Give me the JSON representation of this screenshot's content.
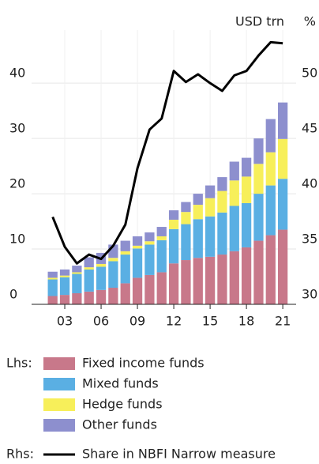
{
  "chart_data": {
    "type": "bar",
    "ylabel": "USD trn",
    "y2label": "%",
    "x": [
      2002,
      2003,
      2004,
      2005,
      2006,
      2007,
      2008,
      2009,
      2010,
      2011,
      2012,
      2013,
      2014,
      2015,
      2016,
      2017,
      2018,
      2019,
      2020,
      2021
    ],
    "xlim": [
      2000.26,
      2022.1
    ],
    "xticks": [
      {
        "value": 2003,
        "label": "03"
      },
      {
        "value": 2006,
        "label": "06"
      },
      {
        "value": 2009,
        "label": "09"
      },
      {
        "value": 2012,
        "label": "12"
      },
      {
        "value": 2015,
        "label": "15"
      },
      {
        "value": 2018,
        "label": "18"
      },
      {
        "value": 2021,
        "label": "21"
      }
    ],
    "ylim": [
      0,
      49.6
    ],
    "yticks": [
      0,
      10,
      20,
      30,
      40
    ],
    "y2lim": [
      30,
      54.8
    ],
    "y2ticks": [
      30,
      35,
      40,
      45,
      50
    ],
    "grid": true,
    "legend_lhs": "Lhs:",
    "legend_rhs": "Rhs:",
    "series": [
      {
        "name": "Fixed income funds",
        "color": "#c8788a",
        "values": [
          1.5,
          1.7,
          2,
          2.3,
          2.6,
          3,
          3.8,
          4.8,
          5.3,
          5.8,
          7.4,
          8,
          8.4,
          8.6,
          9,
          9.6,
          10.3,
          11.5,
          12.5,
          13.5
        ]
      },
      {
        "name": "Mixed funds",
        "color": "#5aafe3",
        "values": [
          3,
          3.2,
          3.5,
          4,
          4.2,
          4.8,
          5.2,
          5.3,
          5.5,
          5.8,
          6.2,
          6.5,
          7,
          7.3,
          7.6,
          8.2,
          8,
          8.5,
          9,
          9.2
        ]
      },
      {
        "name": "Hedge funds",
        "color": "#f7ef5a",
        "values": [
          0.3,
          0.3,
          0.3,
          0.4,
          0.5,
          0.6,
          0.6,
          0.5,
          0.6,
          0.7,
          1.7,
          2.2,
          2.6,
          3.3,
          3.9,
          4.6,
          4.8,
          5.4,
          6,
          7.2
        ]
      },
      {
        "name": "Other funds",
        "color": "#8d8fce",
        "values": [
          1.1,
          1.1,
          1.2,
          1.8,
          2,
          2.4,
          1.9,
          1.7,
          1.6,
          1.7,
          1.7,
          1.8,
          2,
          2.3,
          2.5,
          3.4,
          3.4,
          4.6,
          6,
          6.6
        ]
      },
      {
        "name": "Share in NBFI Narrow measure",
        "color": "#000000",
        "type": "line",
        "axis": "y2",
        "values": [
          37.9,
          35.2,
          33.7,
          34.5,
          34.1,
          35.3,
          37.2,
          42.3,
          45.8,
          46.8,
          51.1,
          50.1,
          50.8,
          50,
          49.3,
          50.7,
          51.1,
          52.5,
          53.7,
          53.6
        ]
      }
    ]
  }
}
